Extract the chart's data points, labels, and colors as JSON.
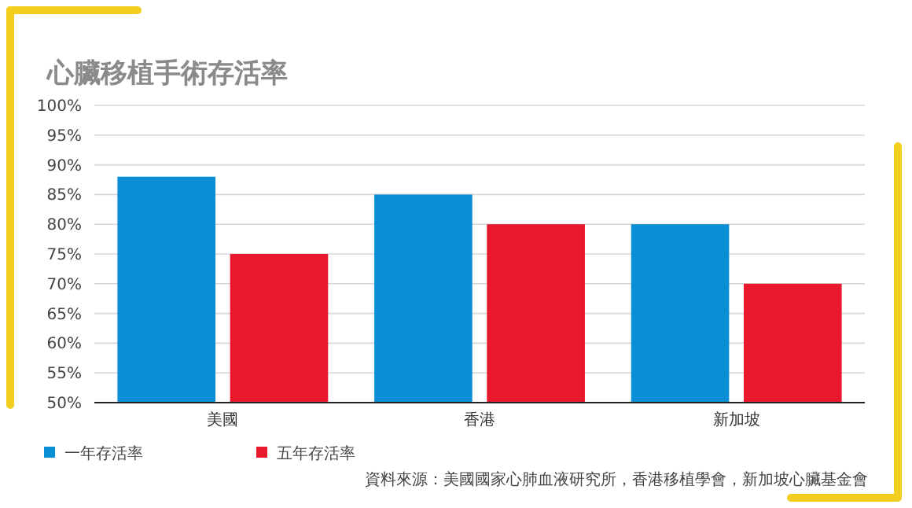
{
  "chart_data": {
    "type": "bar",
    "title": "心臟移植手術存活率",
    "categories": [
      "美國",
      "香港",
      "新加坡"
    ],
    "series": [
      {
        "name": "一年存活率",
        "color": "#0a8fd6",
        "values": [
          88,
          85,
          80
        ]
      },
      {
        "name": "五年存活率",
        "color": "#e8192c",
        "values": [
          75,
          80,
          70
        ]
      }
    ],
    "ylim": [
      50,
      100
    ],
    "yticks": [
      {
        "value": 50,
        "label": "50%"
      },
      {
        "value": 55,
        "label": "55%"
      },
      {
        "value": 60,
        "label": "60%"
      },
      {
        "value": 65,
        "label": "65%"
      },
      {
        "value": 70,
        "label": "70%"
      },
      {
        "value": 75,
        "label": "75%"
      },
      {
        "value": 80,
        "label": "80%"
      },
      {
        "value": 85,
        "label": "85%"
      },
      {
        "value": 90,
        "label": "90%"
      },
      {
        "value": 95,
        "label": "95%"
      },
      {
        "value": 100,
        "label": "100%"
      }
    ],
    "grid": "y",
    "legend": "bottom left",
    "annotations": [
      "資料來源：美國國家心肺血液研究所，香港移植學會，新加坡心臟基金會"
    ]
  }
}
